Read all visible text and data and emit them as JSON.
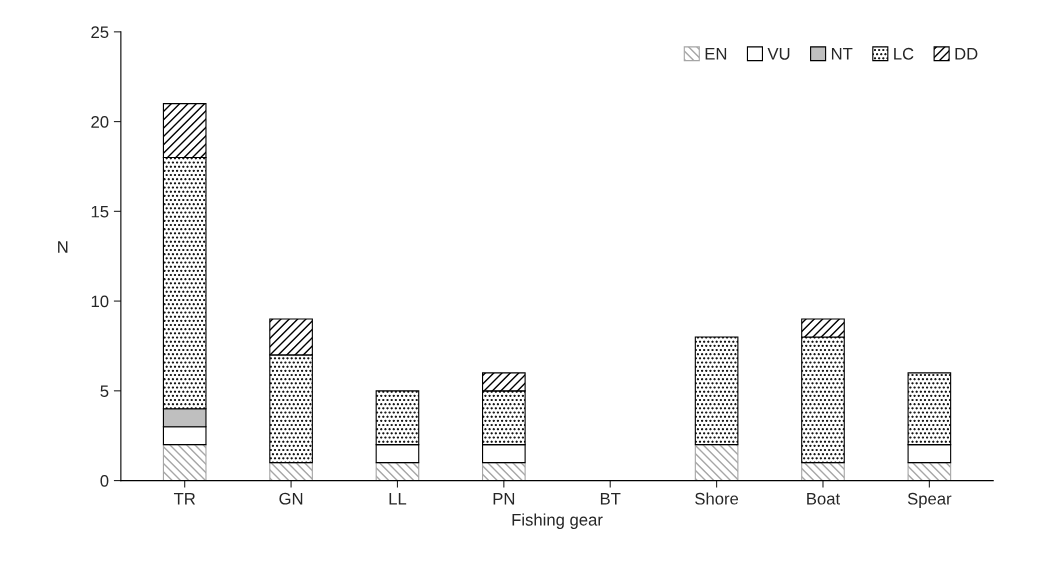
{
  "chart_data": {
    "type": "bar",
    "stacked": true,
    "xlabel": "Fishing gear",
    "ylabel": "N",
    "categories": [
      "TR",
      "GN",
      "LL",
      "PN",
      "BT",
      "Shore",
      "Boat",
      "Spear"
    ],
    "series": [
      {
        "name": "EN",
        "color": "#a6a6a6",
        "values": [
          2,
          1,
          1,
          1,
          0,
          2,
          1,
          1
        ]
      },
      {
        "name": "VU",
        "color": "#ffffff",
        "values": [
          1,
          0,
          1,
          1,
          0,
          0,
          0,
          1
        ]
      },
      {
        "name": "NT",
        "color": "#bfbfbf",
        "values": [
          1,
          0,
          0,
          0,
          0,
          0,
          0,
          0
        ]
      },
      {
        "name": "LC",
        "color": "#000000",
        "values": [
          14,
          6,
          3,
          3,
          0,
          6,
          7,
          4
        ]
      },
      {
        "name": "DD",
        "color": "#000000",
        "values": [
          3,
          2,
          0,
          1,
          0,
          0,
          1,
          0
        ]
      }
    ],
    "ylim": [
      0,
      25
    ],
    "yticks": [
      0,
      5,
      10,
      15,
      20,
      25
    ],
    "grid": false,
    "legend": "top right"
  }
}
